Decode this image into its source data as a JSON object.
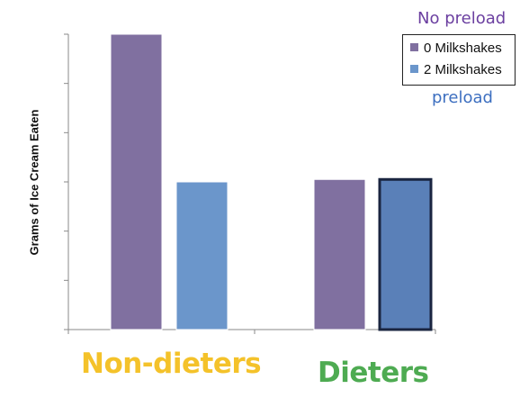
{
  "chart_data": {
    "type": "bar",
    "title": "",
    "xlabel": "",
    "ylabel": "Grams of Ice Cream Eaten",
    "categories": [
      "Non-dieters",
      "Dieters"
    ],
    "category_colors": [
      "#f4c22a",
      "#4eab52"
    ],
    "series": [
      {
        "name": "0 Milkshakes",
        "color": "#8070a0",
        "values": [
          6.0,
          3.05
        ]
      },
      {
        "name": "2 Milkshakes",
        "color": "#6b96cb",
        "values": [
          3.0,
          3.05
        ]
      }
    ],
    "ylim": [
      0,
      6
    ],
    "ytick_count": 7,
    "ytick_labels_shown": false,
    "grid": false,
    "legend_position": "top-right",
    "highlighted_bar": {
      "category": "Dieters",
      "series": "2 Milkshakes",
      "outline": "#1a2540",
      "fill": "#5a80b8"
    },
    "annotations": [
      {
        "text": "No preload",
        "color": "#6b3fa0"
      },
      {
        "text": "preload",
        "color": "#3d6fc0"
      }
    ]
  }
}
